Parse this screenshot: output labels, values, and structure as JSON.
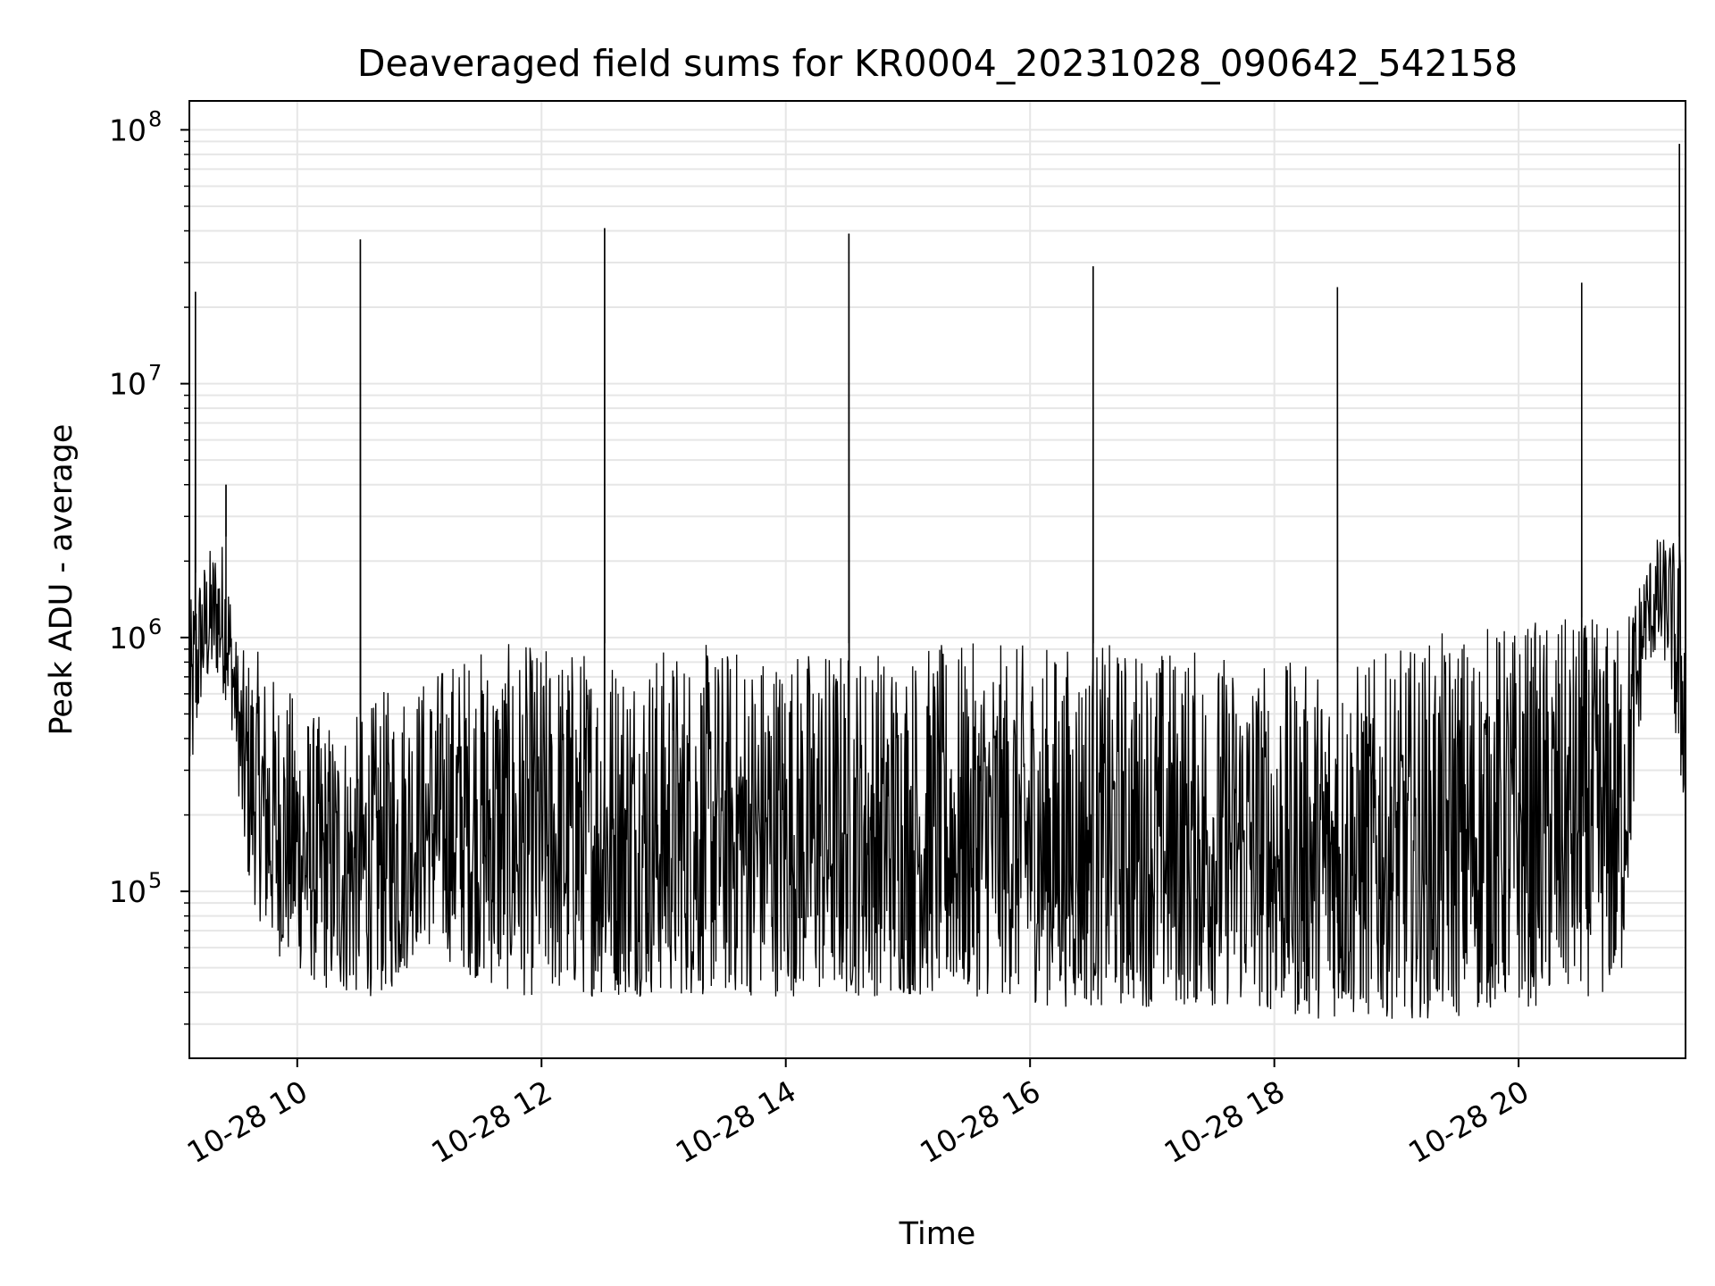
{
  "chart_data": {
    "type": "line",
    "title": "Deaveraged field sums for KR0004_20231028_090642_542158",
    "xlabel": "Time",
    "ylabel": "Peak ADU - average",
    "x_ticks": [
      "10-28 10",
      "10-28 12",
      "10-28 14",
      "10-28 16",
      "10-28 18",
      "10-28 20"
    ],
    "y_ticks": [
      {
        "base": "10",
        "exp": "5",
        "value": 100000
      },
      {
        "base": "10",
        "exp": "6",
        "value": 1000000
      },
      {
        "base": "10",
        "exp": "7",
        "value": 10000000
      },
      {
        "base": "10",
        "exp": "8",
        "value": 100000000
      }
    ],
    "y_scale": "log",
    "ylim": [
      22000,
      130000000
    ],
    "xlim": [
      "2023-10-28 09:07",
      "2023-10-28 21:22"
    ],
    "grid": true,
    "line_color": "#000000",
    "series": [
      {
        "x": [
          "2023-10-28 09:07",
          "2023-10-28 09:10",
          "2023-10-28 09:13",
          "2023-10-28 09:16",
          "2023-10-28 09:20",
          "2023-10-28 09:25",
          "2023-10-28 09:30",
          "2023-10-28 09:33",
          "2023-10-28 09:36",
          "2023-10-28 09:40",
          "2023-10-28 09:45",
          "2023-10-28 09:50",
          "2023-10-28 10:00",
          "2023-10-28 10:10",
          "2023-10-28 10:20",
          "2023-10-28 10:31",
          "2023-10-28 10:40",
          "2023-10-28 10:50",
          "2023-10-28 11:00",
          "2023-10-28 11:10",
          "2023-10-28 11:20",
          "2023-10-28 11:35",
          "2023-10-28 11:50",
          "2023-10-28 12:10",
          "2023-10-28 12:31",
          "2023-10-28 12:50",
          "2023-10-28 13:10",
          "2023-10-28 13:30",
          "2023-10-28 13:50",
          "2023-10-28 14:10",
          "2023-10-28 14:31",
          "2023-10-28 14:50",
          "2023-10-28 15:10",
          "2023-10-28 15:30",
          "2023-10-28 15:50",
          "2023-10-28 16:10",
          "2023-10-28 16:31",
          "2023-10-28 16:50",
          "2023-10-28 17:10",
          "2023-10-28 17:30",
          "2023-10-28 17:50",
          "2023-10-28 18:10",
          "2023-10-28 18:31",
          "2023-10-28 18:50",
          "2023-10-28 19:10",
          "2023-10-28 19:30",
          "2023-10-28 19:50",
          "2023-10-28 20:10",
          "2023-10-28 20:31",
          "2023-10-28 20:50",
          "2023-10-28 21:02",
          "2023-10-28 21:08",
          "2023-10-28 21:14",
          "2023-10-28 21:19",
          "2023-10-28 21:22"
        ],
        "y": [
          600000,
          23000000,
          900000,
          1100000,
          1500000,
          4000000,
          900000,
          400000,
          300000,
          250000,
          200000,
          180000,
          160000,
          120000,
          90000,
          37000000,
          90000,
          95000,
          300000,
          250000,
          150000,
          110000,
          100000,
          90000,
          41000000,
          85000,
          90000,
          95000,
          95000,
          90000,
          39000000,
          110000,
          150000,
          200000,
          220000,
          250000,
          29000000,
          250000,
          280000,
          260000,
          250000,
          260000,
          24000000,
          270000,
          300000,
          350000,
          400000,
          450000,
          25000000,
          500000,
          1500000,
          1700000,
          1600000,
          88000000,
          400000
        ],
        "noise_low": [
          300000,
          500000,
          800000,
          900000,
          1000000,
          800000,
          500000,
          200000,
          150000,
          120000,
          90000,
          80000,
          70000,
          60000,
          55000,
          55000,
          55000,
          60000,
          90000,
          80000,
          70000,
          60000,
          55000,
          55000,
          55000,
          55000,
          55000,
          55000,
          55000,
          55000,
          55000,
          55000,
          55000,
          55000,
          55000,
          50000,
          50000,
          50000,
          50000,
          50000,
          50000,
          45000,
          45000,
          45000,
          45000,
          45000,
          50000,
          50000,
          55000,
          55000,
          1100000,
          1200000,
          1100000,
          350000,
          300000
        ],
        "noise_high": [
          1300000,
          1800000,
          2000000,
          2200000,
          2500000,
          2500000,
          1000000,
          900000,
          900000,
          900000,
          800000,
          700000,
          600000,
          500000,
          500000,
          500000,
          600000,
          700000,
          700000,
          800000,
          900000,
          950000,
          950000,
          950000,
          950000,
          950000,
          950000,
          950000,
          950000,
          950000,
          950000,
          950000,
          950000,
          950000,
          950000,
          950000,
          950000,
          950000,
          950000,
          900000,
          850000,
          800000,
          800000,
          850000,
          950000,
          1100000,
          1150000,
          1200000,
          1200000,
          1200000,
          2000000,
          2500000,
          2500000,
          2500000,
          1800000
        ]
      }
    ]
  }
}
